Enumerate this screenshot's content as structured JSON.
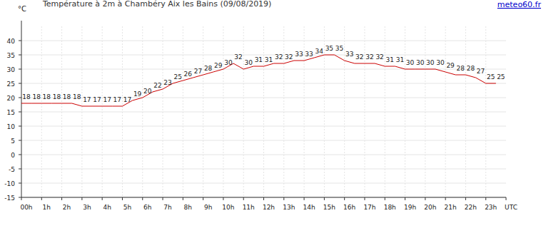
{
  "chart_data": {
    "type": "line",
    "title": "Température à 2m à Chambéry Aix les Bains (09/08/2019)",
    "source": "meteo60.fr",
    "y_label": "°C",
    "x": [
      0,
      0.5,
      1,
      1.5,
      2,
      2.5,
      3,
      3.5,
      4,
      4.5,
      5,
      5.5,
      6,
      6.5,
      7,
      7.5,
      8,
      8.5,
      9,
      9.5,
      10,
      10.5,
      11,
      11.5,
      12,
      12.5,
      13,
      13.5,
      14,
      14.5,
      15,
      15.5,
      16,
      16.5,
      17,
      17.5,
      18,
      18.5,
      19,
      19.5,
      20,
      20.5,
      21,
      21.5,
      22,
      22.5,
      23,
      23.5
    ],
    "values": [
      18,
      18,
      18,
      18,
      18,
      18,
      17,
      17,
      17,
      17,
      17,
      19,
      20,
      22,
      23,
      25,
      26,
      27,
      28,
      29,
      30,
      32,
      30,
      31,
      31,
      32,
      32,
      33,
      33,
      34,
      35,
      35,
      33,
      32,
      32,
      32,
      31,
      31,
      30,
      30,
      30,
      30,
      29,
      28,
      28,
      27,
      25,
      25
    ],
    "color": "#cc0000",
    "xlim": [
      0,
      24
    ],
    "xticks": [
      {
        "value": 0,
        "label": "00h"
      },
      {
        "value": 1,
        "label": "1h"
      },
      {
        "value": 2,
        "label": "2h"
      },
      {
        "value": 3,
        "label": "3h"
      },
      {
        "value": 4,
        "label": "4h"
      },
      {
        "value": 5,
        "label": "5h"
      },
      {
        "value": 6,
        "label": "6h"
      },
      {
        "value": 7,
        "label": "7h"
      },
      {
        "value": 8,
        "label": "8h"
      },
      {
        "value": 9,
        "label": "9h"
      },
      {
        "value": 10,
        "label": "10h"
      },
      {
        "value": 11,
        "label": "11h"
      },
      {
        "value": 12,
        "label": "12h"
      },
      {
        "value": 13,
        "label": "13h"
      },
      {
        "value": 14,
        "label": "14h"
      },
      {
        "value": 15,
        "label": "15h"
      },
      {
        "value": 16,
        "label": "16h"
      },
      {
        "value": 17,
        "label": "17h"
      },
      {
        "value": 18,
        "label": "18h"
      },
      {
        "value": 19,
        "label": "19h"
      },
      {
        "value": 20,
        "label": "20h"
      },
      {
        "value": 21,
        "label": "21h"
      },
      {
        "value": 22,
        "label": "22h"
      },
      {
        "value": 23,
        "label": "23h"
      },
      {
        "value": 24,
        "label": "UTC"
      }
    ],
    "ylim": [
      -15,
      45
    ],
    "yticks": [
      -15,
      -10,
      -5,
      0,
      5,
      10,
      15,
      20,
      25,
      30,
      35,
      40
    ],
    "grid": true,
    "data_labels": true
  }
}
